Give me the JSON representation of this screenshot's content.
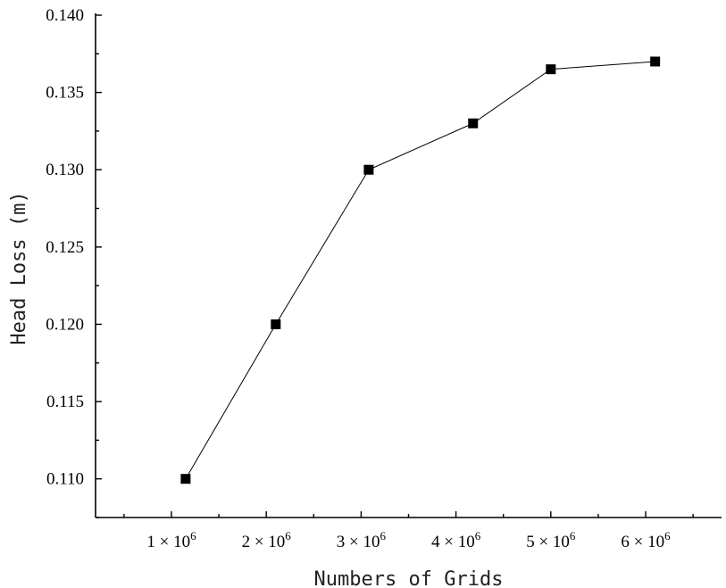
{
  "chart_data": {
    "type": "line",
    "title": "",
    "xlabel": "Numbers of Grids",
    "ylabel": "Head Loss (m)",
    "ylim": [
      0.1075,
      0.14
    ],
    "xlim": [
      0.2,
      6.8
    ],
    "y_ticks": [
      0.11,
      0.115,
      0.12,
      0.125,
      0.13,
      0.135,
      0.14
    ],
    "y_tick_labels": [
      "0.110",
      "0.115",
      "0.120",
      "0.125",
      "0.130",
      "0.135",
      "0.140"
    ],
    "x_ticks": [
      1,
      2,
      3,
      4,
      5,
      6
    ],
    "x_tick_labels": [
      {
        "mantissa": "1",
        "times": "×",
        "base": "10",
        "exp": "6"
      },
      {
        "mantissa": "2",
        "times": "×",
        "base": "10",
        "exp": "6"
      },
      {
        "mantissa": "3",
        "times": "×",
        "base": "10",
        "exp": "6"
      },
      {
        "mantissa": "4",
        "times": "×",
        "base": "10",
        "exp": "6"
      },
      {
        "mantissa": "5",
        "times": "×",
        "base": "10",
        "exp": "6"
      },
      {
        "mantissa": "6",
        "times": "×",
        "base": "10",
        "exp": "6"
      }
    ],
    "x_unit_multiplier": 1000000,
    "grid": false,
    "series": [
      {
        "marker": "square",
        "color": "#000000",
        "x": [
          1.15,
          2.1,
          3.08,
          4.18,
          5.0,
          6.1
        ],
        "y": [
          0.11,
          0.12,
          0.13,
          0.133,
          0.1365,
          0.137
        ]
      }
    ]
  }
}
